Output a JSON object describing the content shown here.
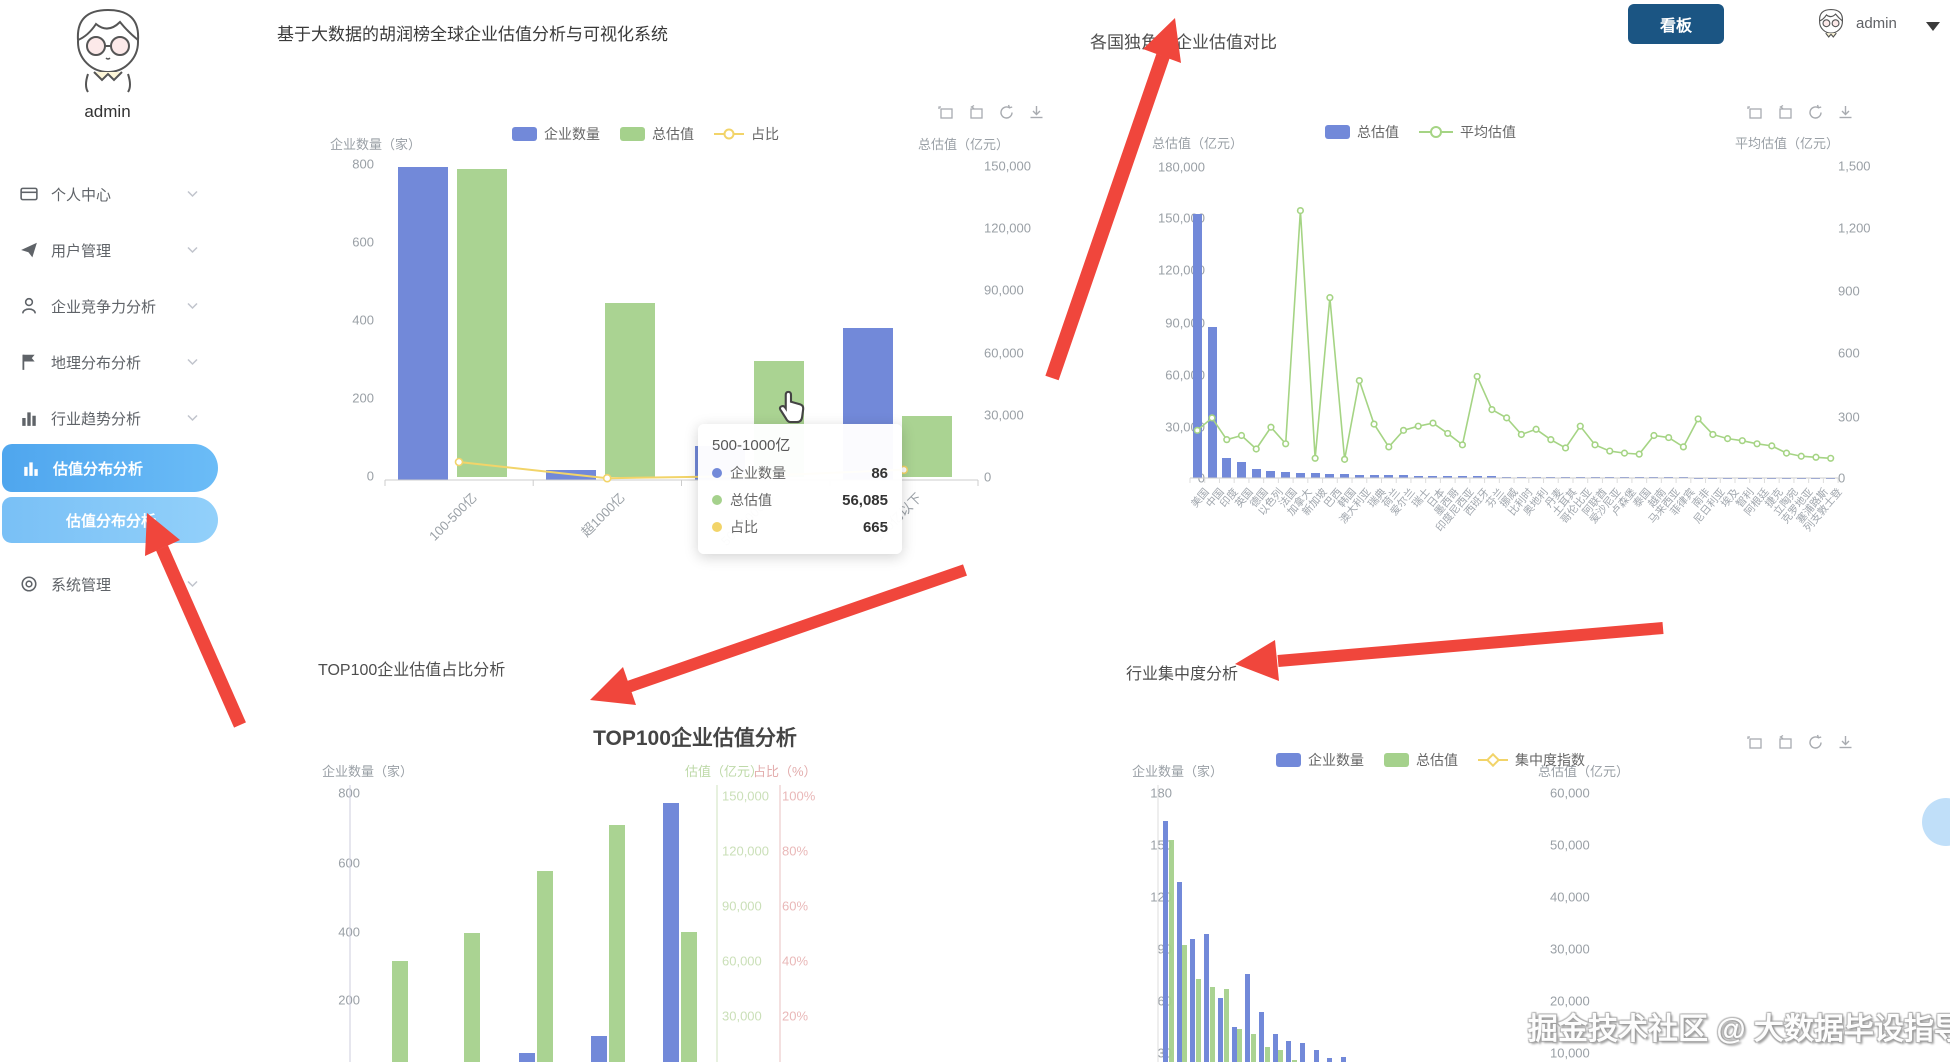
{
  "header": {
    "title": "基于大数据的胡润榜全球企业估值分析与可视化系统",
    "kanban_label": "看板",
    "username": "admin"
  },
  "sidebar": {
    "username": "admin",
    "items": [
      {
        "label": "个人中心"
      },
      {
        "label": "用户管理"
      },
      {
        "label": "企业竞争力分析"
      },
      {
        "label": "地理分布分析"
      },
      {
        "label": "行业趋势分析"
      },
      {
        "label": "估值分布分析"
      },
      {
        "label": "估值分布分析"
      },
      {
        "label": "系统管理"
      }
    ]
  },
  "watermark": "掘金技术社区 @ 大数据毕设指导师",
  "colors": {
    "bar_blue": "#7289d9",
    "bar_green": "#a5d18c",
    "line_green": "#a5d484",
    "accent_yellow": "#f2d469",
    "arrow_red": "#f0463c",
    "sidebar_active": "#57aaf0",
    "kanban_bg": "#1b5583"
  },
  "chart_data": [
    {
      "id": "valuation-distribution",
      "type": "bar",
      "y_axis_name": "企业数量（家）",
      "y2_axis_name": "总估值（亿元）",
      "legend": [
        "企业数量",
        "总估值",
        "占比"
      ],
      "left_ticks": [
        "800",
        "600",
        "400",
        "200",
        "0"
      ],
      "right_ticks": [
        "150,000",
        "120,000",
        "90,000",
        "60,000",
        "30,000",
        "0"
      ],
      "categories": [
        "100-500亿",
        "超1000亿",
        "500-1000亿",
        "100亿以下"
      ],
      "ylim_left": [
        0,
        800
      ],
      "ylim_right": [
        0,
        150000
      ],
      "series": [
        {
          "name": "企业数量",
          "values": [
            795,
            25,
            86,
            385
          ]
        },
        {
          "name": "总估值",
          "values": [
            148500,
            84000,
            56085,
            29500
          ]
        },
        {
          "name": "占比",
          "values": [
            3000,
            300,
            665,
            1700
          ]
        }
      ],
      "tooltip": {
        "title": "500-1000亿",
        "rows": [
          {
            "label": "企业数量",
            "value": "86"
          },
          {
            "label": "总估值",
            "value": "56,085"
          },
          {
            "label": "占比",
            "value": "665"
          }
        ]
      }
    },
    {
      "id": "country-comparison",
      "type": "bar+line",
      "title": "各国独角兽企业估值对比",
      "y_axis_name": "总估值（亿元）",
      "y2_axis_name": "平均估值（亿元）",
      "legend": [
        "总估值",
        "平均估值"
      ],
      "left_ticks": [
        "180,000",
        "150,000",
        "120,000",
        "90,000",
        "60,000",
        "30,000",
        "0"
      ],
      "right_ticks": [
        "1,500",
        "1,200",
        "900",
        "600",
        "300",
        "0"
      ],
      "ylim_left": [
        0,
        180000
      ],
      "ylim_right": [
        0,
        1500
      ],
      "categories": [
        "美国",
        "中国",
        "印度",
        "英国",
        "德国",
        "以色列",
        "法国",
        "加拿大",
        "新加坡",
        "巴西",
        "韩国",
        "澳大利亚",
        "瑞典",
        "荷兰",
        "爱尔兰",
        "瑞士",
        "日本",
        "墨西哥",
        "印度尼西亚",
        "西班牙",
        "芬兰",
        "挪威",
        "比利时",
        "奥地利",
        "丹麦",
        "土耳其",
        "哥伦比亚",
        "阿联酋",
        "爱沙尼亚",
        "卢森堡",
        "泰国",
        "越南",
        "马来西亚",
        "菲律宾",
        "南非",
        "尼日利亚",
        "埃及",
        "智利",
        "阿根廷",
        "捷克",
        "立陶宛",
        "克罗地亚",
        "塞浦路斯",
        "列支敦士登"
      ],
      "series": [
        {
          "name": "总估值",
          "values": [
            152000,
            87000,
            11500,
            9200,
            5200,
            3800,
            3300,
            2900,
            2600,
            2300,
            2100,
            1900,
            1750,
            1600,
            1450,
            1300,
            1200,
            1100,
            1000,
            950,
            900,
            850,
            800,
            750,
            700,
            650,
            600,
            550,
            500,
            460,
            420,
            380,
            340,
            310,
            280,
            250,
            220,
            190,
            160,
            140,
            120,
            100,
            80,
            60
          ]
        },
        {
          "name": "平均估值",
          "values": [
            230,
            290,
            185,
            205,
            140,
            245,
            165,
            1290,
            95,
            870,
            90,
            470,
            260,
            150,
            230,
            250,
            265,
            215,
            160,
            490,
            330,
            290,
            210,
            235,
            185,
            145,
            250,
            160,
            130,
            120,
            115,
            205,
            195,
            150,
            285,
            210,
            190,
            180,
            165,
            155,
            120,
            105,
            100,
            95
          ]
        }
      ]
    },
    {
      "id": "top100-valuation",
      "type": "bar",
      "panel_title": "TOP100企业估值占比分析",
      "title": "TOP100企业估值分析",
      "y_axis_name": "企业数量（家）",
      "y2_axis_name": "估值（亿元）",
      "y3_axis_name": "占比（%）",
      "left_ticks": [
        "800",
        "600",
        "400",
        "200"
      ],
      "green_ticks": [
        "150,000",
        "120,000",
        "90,000",
        "60,000",
        "30,000"
      ],
      "red_ticks": [
        "100%",
        "80%",
        "60%",
        "40%",
        "20%"
      ],
      "ylim_left": [
        0,
        800
      ],
      "ylim_right": [
        0,
        150000
      ],
      "series": [
        {
          "name": "企业数量",
          "values": [
            4,
            6,
            45,
            95,
            770
          ]
        },
        {
          "name": "估值",
          "values": [
            60000,
            75500,
            109000,
            134000,
            76000
          ]
        }
      ]
    },
    {
      "id": "industry-concentration",
      "type": "bar",
      "panel_title": "行业集中度分析",
      "y_axis_name": "企业数量（家）",
      "y2_axis_name": "总估值（亿元）",
      "legend": [
        "企业数量",
        "总估值",
        "集中度指数"
      ],
      "left_ticks": [
        "180",
        "150",
        "120",
        "90",
        "60",
        "30"
      ],
      "right_ticks": [
        "60,000",
        "50,000",
        "40,000",
        "30,000",
        "20,000",
        "10,000"
      ],
      "ylim_left": [
        0,
        180
      ],
      "ylim_right": [
        0,
        60000
      ],
      "series": [
        {
          "name": "企业数量",
          "values": [
            165,
            130,
            97,
            100,
            63,
            46,
            77,
            55,
            42,
            38,
            37,
            33,
            28,
            29
          ]
        },
        {
          "name": "总估值",
          "values": [
            51000,
            31000,
            24500,
            23000,
            22500,
            15000,
            14000,
            11500,
            10800,
            9000,
            8000,
            6500,
            5800,
            5200
          ]
        }
      ]
    }
  ]
}
